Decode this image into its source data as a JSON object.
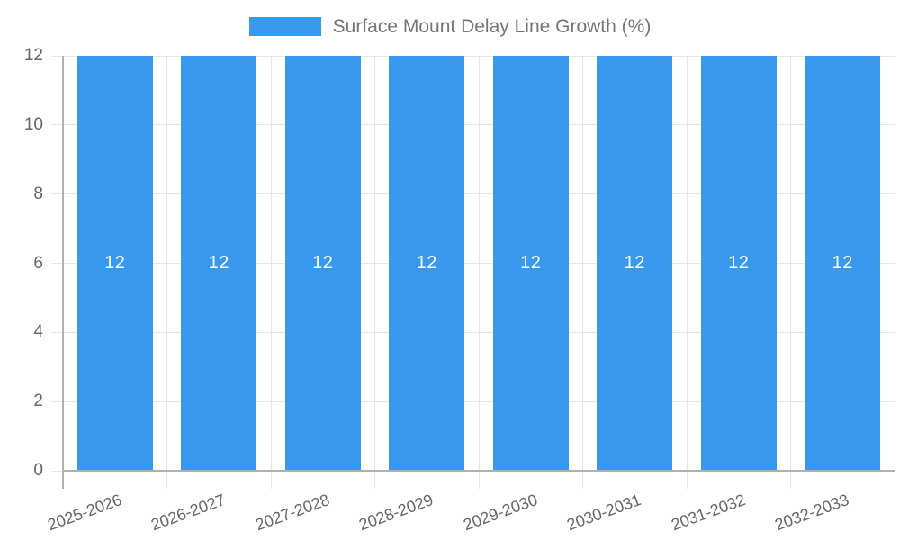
{
  "legend": {
    "position": "top",
    "label": "Surface Mount Delay Line Growth (%)"
  },
  "chart_data": {
    "type": "bar",
    "title": "Surface Mount Delay Line Growth (%)",
    "categories": [
      "2025-2026",
      "2026-2027",
      "2027-2028",
      "2028-2029",
      "2029-2030",
      "2030-2031",
      "2031-2032",
      "2032-2033"
    ],
    "series": [
      {
        "name": "Surface Mount Delay Line Growth (%)",
        "values": [
          12,
          12,
          12,
          12,
          12,
          12,
          12,
          12
        ]
      }
    ],
    "bar_value_labels": [
      "12",
      "12",
      "12",
      "12",
      "12",
      "12",
      "12",
      "12"
    ],
    "xlabel": "",
    "ylabel": "",
    "ylim": [
      0,
      12
    ],
    "yticks": [
      0,
      2,
      4,
      6,
      8,
      10,
      12
    ],
    "grid": true,
    "legend_position": "top",
    "x_tick_rotation_deg": -20
  },
  "colors": {
    "bar": "#3899ee",
    "bar_value_label": "#ffffff",
    "grid_line": "#e6e6e6",
    "axis_line": "#b0b0b0",
    "tick_text": "#666666",
    "legend_text": "#757575",
    "background": "#ffffff"
  }
}
